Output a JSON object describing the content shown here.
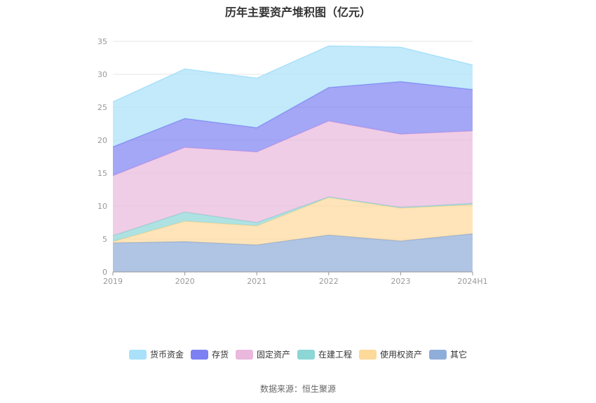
{
  "chart_data": {
    "type": "area",
    "stacked": true,
    "title": "历年主要资产堆积图（亿元）",
    "categories": [
      "2019",
      "2020",
      "2021",
      "2022",
      "2023",
      "2024H1"
    ],
    "ylim": [
      0,
      35
    ],
    "yticks": [
      0,
      5,
      10,
      15,
      20,
      25,
      30,
      35
    ],
    "grid": true,
    "legend_position": "bottom",
    "series": [
      {
        "name": "其它",
        "color": "#8fadd9",
        "values": [
          4.4,
          4.6,
          4.1,
          5.6,
          4.7,
          5.8
        ]
      },
      {
        "name": "使用权资产",
        "color": "#fdd99a",
        "values": [
          0.2,
          3.1,
          2.9,
          5.7,
          5.0,
          4.4
        ]
      },
      {
        "name": "在建工程",
        "color": "#8cd6d6",
        "values": [
          0.9,
          1.4,
          0.5,
          0.1,
          0.1,
          0.2
        ]
      },
      {
        "name": "固定资产",
        "color": "#eab8dc",
        "values": [
          9.1,
          9.8,
          10.7,
          11.5,
          11.1,
          11.0
        ]
      },
      {
        "name": "存货",
        "color": "#7d80f2",
        "values": [
          4.4,
          4.4,
          3.7,
          5.1,
          8.0,
          6.3
        ]
      },
      {
        "name": "货币资金",
        "color": "#a9e1fa",
        "values": [
          6.8,
          7.5,
          7.5,
          6.3,
          5.2,
          3.7
        ]
      }
    ]
  },
  "legend": [
    {
      "label": "货币资金",
      "color": "#a9e1fa"
    },
    {
      "label": "存货",
      "color": "#7d80f2"
    },
    {
      "label": "固定资产",
      "color": "#eab8dc"
    },
    {
      "label": "在建工程",
      "color": "#8cd6d6"
    },
    {
      "label": "使用权资产",
      "color": "#fdd99a"
    },
    {
      "label": "其它",
      "color": "#8fadd9"
    }
  ],
  "source": "数据来源：恒生聚源"
}
